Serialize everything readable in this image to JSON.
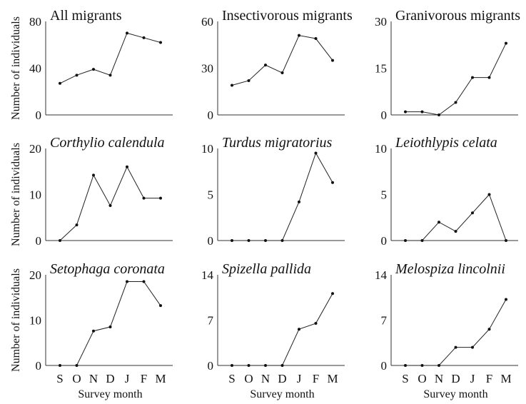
{
  "chart_data": [
    {
      "type": "line",
      "title": "All migrants",
      "title_italic": false,
      "ylabel": "Number of individuals",
      "xlabel": "",
      "categories": [
        "S",
        "O",
        "N",
        "D",
        "J",
        "F",
        "M"
      ],
      "yticks": [
        "0",
        "40",
        "80"
      ],
      "ylim": [
        0,
        80
      ],
      "values": [
        27,
        34,
        39,
        34,
        70,
        66,
        62
      ]
    },
    {
      "type": "line",
      "title": "Insectivorous migrants",
      "title_italic": false,
      "ylabel": "",
      "xlabel": "",
      "categories": [
        "S",
        "O",
        "N",
        "D",
        "J",
        "F",
        "M"
      ],
      "yticks": [
        "0",
        "30",
        "60"
      ],
      "ylim": [
        0,
        60
      ],
      "values": [
        19,
        22,
        32,
        27,
        51,
        49,
        35
      ]
    },
    {
      "type": "line",
      "title": "Granivorous migrants",
      "title_italic": false,
      "ylabel": "",
      "xlabel": "",
      "categories": [
        "S",
        "O",
        "N",
        "D",
        "J",
        "F",
        "M"
      ],
      "yticks": [
        "0",
        "15",
        "30"
      ],
      "ylim": [
        0,
        30
      ],
      "values": [
        1,
        1,
        0,
        4,
        12,
        12,
        23
      ]
    },
    {
      "type": "line",
      "title": "Corthylio calendula",
      "title_italic": true,
      "ylabel": "Number of individuals",
      "xlabel": "",
      "categories": [
        "S",
        "O",
        "N",
        "D",
        "J",
        "F",
        "M"
      ],
      "yticks": [
        "0",
        "10",
        "20"
      ],
      "ylim": [
        0,
        20
      ],
      "values": [
        0,
        3.4,
        14.2,
        7.6,
        16,
        9.2,
        9.2
      ]
    },
    {
      "type": "line",
      "title": "Turdus migratorius",
      "title_italic": true,
      "ylabel": "",
      "xlabel": "",
      "categories": [
        "S",
        "O",
        "N",
        "D",
        "J",
        "F",
        "M"
      ],
      "yticks": [
        "0",
        "5",
        "10"
      ],
      "ylim": [
        0,
        10
      ],
      "values": [
        0,
        0,
        0,
        0,
        4.2,
        9.5,
        6.3
      ]
    },
    {
      "type": "line",
      "title": "Leiothlypis celata",
      "title_italic": true,
      "ylabel": "",
      "xlabel": "",
      "categories": [
        "S",
        "O",
        "N",
        "D",
        "J",
        "F",
        "M"
      ],
      "yticks": [
        "0",
        "5",
        "10"
      ],
      "ylim": [
        0,
        10
      ],
      "values": [
        0,
        0,
        2,
        1,
        3,
        5,
        0
      ]
    },
    {
      "type": "line",
      "title": "Setophaga coronata",
      "title_italic": true,
      "ylabel": "Number of individuals",
      "xlabel": "Survey month",
      "categories": [
        "S",
        "O",
        "N",
        "D",
        "J",
        "F",
        "M"
      ],
      "yticks": [
        "0",
        "10",
        "20"
      ],
      "ylim": [
        0,
        20
      ],
      "values": [
        0,
        0,
        7.6,
        8.5,
        18.5,
        18.5,
        13.2
      ]
    },
    {
      "type": "line",
      "title": "Spizella pallida",
      "title_italic": true,
      "ylabel": "",
      "xlabel": "Survey month",
      "categories": [
        "S",
        "O",
        "N",
        "D",
        "J",
        "F",
        "M"
      ],
      "yticks": [
        "0",
        "7",
        "14"
      ],
      "ylim": [
        0,
        14
      ],
      "values": [
        0,
        0,
        0,
        0,
        5.6,
        6.5,
        11.1
      ]
    },
    {
      "type": "line",
      "title": "Melospiza lincolnii",
      "title_italic": true,
      "ylabel": "",
      "xlabel": "Survey month",
      "categories": [
        "S",
        "O",
        "N",
        "D",
        "J",
        "F",
        "M"
      ],
      "yticks": [
        "0",
        "7",
        "14"
      ],
      "ylim": [
        0,
        14
      ],
      "values": [
        0,
        0,
        0,
        2.8,
        2.8,
        5.6,
        10.2
      ]
    }
  ]
}
